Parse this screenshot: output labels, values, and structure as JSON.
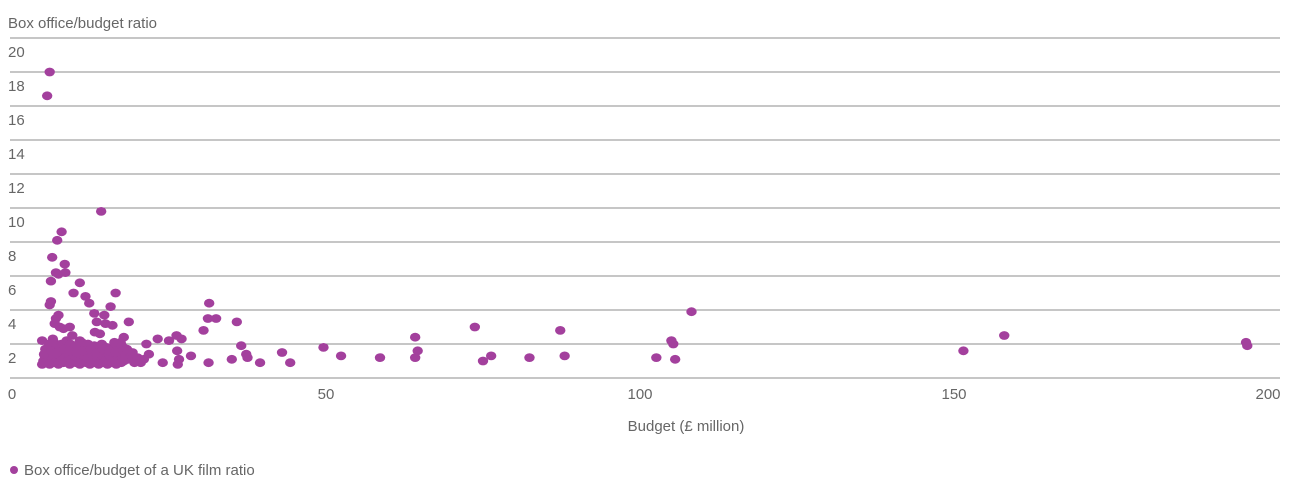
{
  "chart_data": {
    "type": "scatter",
    "ylabel": "Box office/budget ratio",
    "xlabel": "Budget (£ million)",
    "xlim": [
      0,
      200
    ],
    "ylim": [
      0,
      20
    ],
    "x_ticks": [
      "0",
      "50",
      "100",
      "150",
      "200"
    ],
    "y_ticks": [
      "2",
      "4",
      "6",
      "8",
      "10",
      "12",
      "14",
      "16",
      "18",
      "20"
    ],
    "grid": "horizontal",
    "legend_position": "bottom-left",
    "series": [
      {
        "name": "Box office/budget of a UK film ratio",
        "color": "#A3409D",
        "points": [
          [
            5.6,
            16.6
          ],
          [
            6.0,
            18.0
          ],
          [
            7.2,
            8.1
          ],
          [
            7.9,
            8.6
          ],
          [
            6.4,
            7.1
          ],
          [
            7.0,
            6.2
          ],
          [
            7.4,
            6.1
          ],
          [
            8.5,
            6.2
          ],
          [
            8.4,
            6.7
          ],
          [
            6.2,
            5.7
          ],
          [
            6.0,
            4.3
          ],
          [
            6.2,
            4.5
          ],
          [
            7.4,
            3.7
          ],
          [
            7.0,
            3.5
          ],
          [
            6.8,
            3.2
          ],
          [
            7.6,
            3.0
          ],
          [
            8.2,
            2.9
          ],
          [
            9.2,
            3.0
          ],
          [
            9.8,
            5.0
          ],
          [
            10.8,
            5.6
          ],
          [
            11.7,
            4.8
          ],
          [
            12.3,
            4.4
          ],
          [
            13.1,
            3.8
          ],
          [
            13.5,
            3.3
          ],
          [
            14.7,
            3.7
          ],
          [
            14.9,
            3.2
          ],
          [
            15.7,
            4.2
          ],
          [
            16.5,
            5.0
          ],
          [
            16.0,
            3.1
          ],
          [
            13.2,
            2.7
          ],
          [
            18.6,
            3.3
          ],
          [
            17.3,
            2.1
          ],
          [
            14.0,
            2.6
          ],
          [
            14.2,
            9.8
          ],
          [
            4.8,
            2.2
          ],
          [
            5.5,
            1.6
          ],
          [
            6.5,
            2.3
          ],
          [
            9.6,
            2.5
          ],
          [
            10.8,
            2.2
          ],
          [
            12.0,
            1.8
          ],
          [
            17.8,
            2.4
          ],
          [
            21.0,
            1.1
          ],
          [
            21.4,
            2.0
          ],
          [
            21.8,
            1.4
          ],
          [
            23.2,
            2.3
          ],
          [
            25.0,
            2.2
          ],
          [
            26.2,
            2.5
          ],
          [
            27.0,
            2.3
          ],
          [
            28.5,
            1.3
          ],
          [
            26.3,
            1.6
          ],
          [
            26.6,
            1.1
          ],
          [
            30.5,
            2.8
          ],
          [
            31.2,
            3.5
          ],
          [
            31.4,
            4.4
          ],
          [
            32.5,
            3.5
          ],
          [
            35.8,
            3.3
          ],
          [
            36.5,
            1.9
          ],
          [
            37.3,
            1.4
          ],
          [
            37.5,
            1.2
          ],
          [
            39.5,
            0.9
          ],
          [
            35.0,
            1.1
          ],
          [
            31.3,
            0.9
          ],
          [
            24.0,
            0.9
          ],
          [
            26.4,
            0.8
          ],
          [
            43.0,
            1.5
          ],
          [
            44.3,
            0.9
          ],
          [
            49.6,
            1.8
          ],
          [
            52.4,
            1.3
          ],
          [
            58.6,
            1.2
          ],
          [
            64.2,
            1.2
          ],
          [
            64.2,
            2.4
          ],
          [
            64.6,
            1.6
          ],
          [
            73.7,
            3.0
          ],
          [
            75.0,
            1.0
          ],
          [
            76.3,
            1.3
          ],
          [
            82.4,
            1.2
          ],
          [
            87.3,
            2.8
          ],
          [
            88.0,
            1.3
          ],
          [
            102.6,
            1.2
          ],
          [
            105.0,
            2.2
          ],
          [
            105.3,
            2.0
          ],
          [
            105.6,
            1.1
          ],
          [
            108.2,
            3.9
          ],
          [
            151.5,
            1.6
          ],
          [
            158.0,
            2.5
          ],
          [
            196.5,
            2.1
          ],
          [
            196.7,
            1.9
          ],
          [
            4.8,
            0.8
          ],
          [
            5.0,
            1.0
          ],
          [
            5.2,
            1.3
          ],
          [
            5.4,
            0.9
          ],
          [
            5.6,
            1.1
          ],
          [
            5.8,
            1.5
          ],
          [
            6.0,
            0.8
          ],
          [
            6.2,
            1.2
          ],
          [
            6.4,
            1.0
          ],
          [
            6.6,
            1.4
          ],
          [
            6.8,
            0.9
          ],
          [
            7.0,
            1.8
          ],
          [
            7.2,
            1.1
          ],
          [
            7.4,
            0.8
          ],
          [
            7.6,
            1.3
          ],
          [
            7.8,
            1.0
          ],
          [
            8.0,
            1.6
          ],
          [
            8.2,
            0.9
          ],
          [
            8.4,
            1.2
          ],
          [
            8.6,
            1.9
          ],
          [
            8.8,
            1.0
          ],
          [
            9.0,
            1.4
          ],
          [
            9.2,
            0.8
          ],
          [
            9.4,
            1.1
          ],
          [
            9.6,
            1.7
          ],
          [
            9.8,
            1.0
          ],
          [
            10.0,
            1.3
          ],
          [
            10.2,
            0.9
          ],
          [
            10.4,
            1.2
          ],
          [
            10.6,
            1.5
          ],
          [
            10.8,
            0.8
          ],
          [
            11.0,
            1.1
          ],
          [
            11.2,
            1.8
          ],
          [
            11.4,
            1.0
          ],
          [
            11.6,
            1.3
          ],
          [
            11.8,
            0.9
          ],
          [
            12.0,
            1.2
          ],
          [
            12.2,
            1.6
          ],
          [
            12.4,
            0.8
          ],
          [
            12.6,
            1.0
          ],
          [
            12.8,
            1.4
          ],
          [
            13.0,
            1.1
          ],
          [
            13.2,
            0.9
          ],
          [
            13.4,
            1.7
          ],
          [
            13.6,
            1.2
          ],
          [
            13.8,
            0.8
          ],
          [
            14.0,
            1.5
          ],
          [
            14.2,
            1.0
          ],
          [
            14.4,
            1.3
          ],
          [
            14.6,
            0.9
          ],
          [
            14.8,
            1.6
          ],
          [
            15.0,
            1.1
          ],
          [
            15.2,
            0.8
          ],
          [
            15.4,
            1.4
          ],
          [
            15.6,
            1.0
          ],
          [
            15.8,
            1.2
          ],
          [
            16.0,
            0.9
          ],
          [
            16.2,
            1.8
          ],
          [
            16.4,
            1.1
          ],
          [
            16.6,
            0.8
          ],
          [
            16.8,
            1.3
          ],
          [
            17.0,
            1.0
          ],
          [
            17.2,
            1.5
          ],
          [
            17.4,
            0.9
          ],
          [
            17.6,
            1.2
          ],
          [
            17.8,
            1.0
          ],
          [
            18.0,
            1.4
          ],
          [
            18.5,
            1.1
          ],
          [
            19.0,
            1.3
          ],
          [
            19.5,
            0.9
          ],
          [
            5.3,
            1.7
          ],
          [
            5.9,
            2.0
          ],
          [
            6.7,
            2.1
          ],
          [
            7.3,
            1.9
          ],
          [
            7.9,
            2.0
          ],
          [
            8.7,
            2.2
          ],
          [
            9.3,
            2.0
          ],
          [
            10.1,
            1.9
          ],
          [
            11.1,
            2.1
          ],
          [
            12.1,
            2.0
          ],
          [
            13.1,
            1.9
          ],
          [
            14.3,
            2.0
          ],
          [
            15.1,
            1.8
          ],
          [
            16.3,
            2.1
          ],
          [
            17.5,
            1.9
          ],
          [
            5.1,
            1.4
          ],
          [
            6.3,
            1.6
          ],
          [
            7.1,
            1.5
          ],
          [
            8.3,
            1.7
          ],
          [
            9.1,
            1.6
          ],
          [
            10.3,
            1.5
          ],
          [
            11.3,
            1.6
          ],
          [
            12.5,
            1.7
          ],
          [
            13.5,
            1.5
          ],
          [
            14.5,
            1.7
          ],
          [
            15.5,
            1.6
          ],
          [
            16.5,
            1.5
          ],
          [
            17.7,
            1.6
          ],
          [
            18.3,
            1.7
          ],
          [
            19.2,
            1.5
          ],
          [
            20.0,
            1.2
          ],
          [
            20.5,
            0.9
          ]
        ]
      }
    ]
  }
}
